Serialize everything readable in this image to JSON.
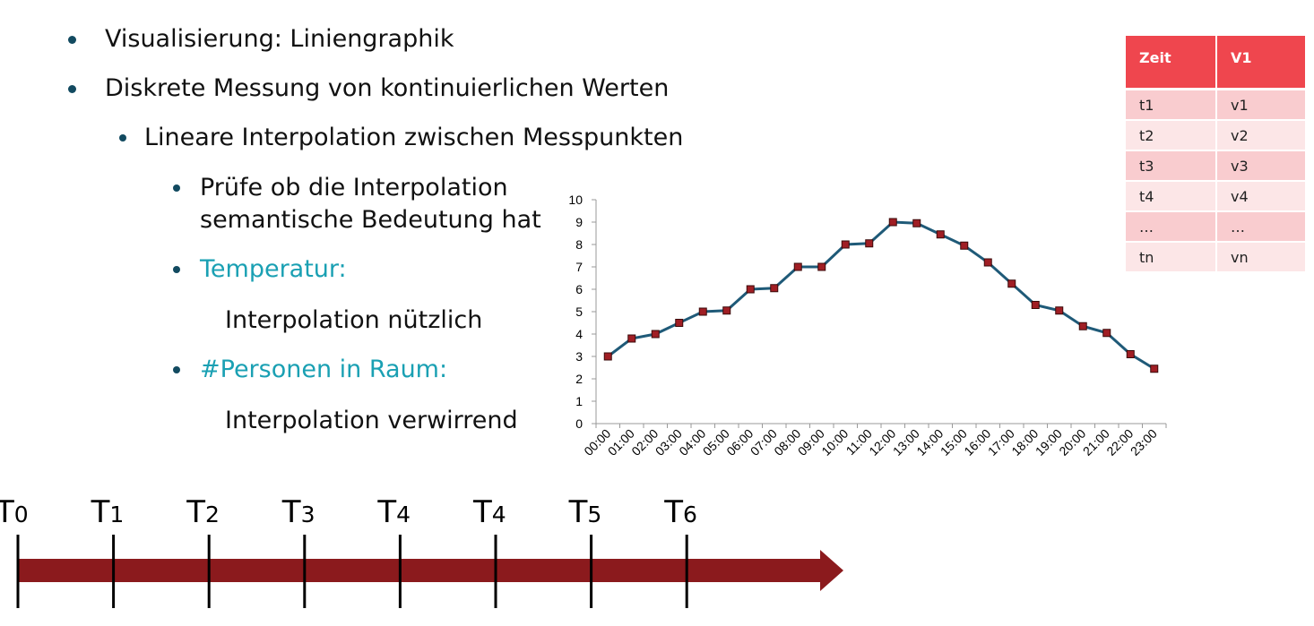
{
  "bullets": {
    "b1": "Visualisierung: Liniengraphik",
    "b2": "Diskrete Messung von kontinuierlichen Werten",
    "b3": "Lineare Interpolation zwischen Messpunkten",
    "b4_line1": "Prüfe ob die Interpolation",
    "b4_line2": "semantische Bedeutung hat",
    "b5": "Temperatur:",
    "b5_sub": "Interpolation nützlich",
    "b6": "#Personen in Raum:",
    "b6_sub": "Interpolation verwirrend"
  },
  "colors": {
    "accent": "#1aa0b3",
    "bullet": "#124a60",
    "line": "#1f5a78",
    "marker": "#a01e24",
    "table_header": "#ef464e",
    "table_row_odd": "#f9cccf",
    "table_row_even": "#fce6e7",
    "arrow": "#8b1a1d"
  },
  "table": {
    "headers": [
      "Zeit",
      "V1"
    ],
    "rows": [
      [
        "t1",
        "v1"
      ],
      [
        "t2",
        "v2"
      ],
      [
        "t3",
        "v3"
      ],
      [
        "t4",
        "v4"
      ],
      [
        "…",
        "…"
      ],
      [
        "tn",
        "vn"
      ]
    ]
  },
  "chart_data": {
    "type": "line",
    "title": "",
    "xlabel": "",
    "ylabel": "",
    "ylim": [
      0,
      10
    ],
    "yticks": [
      0,
      1,
      2,
      3,
      4,
      5,
      6,
      7,
      8,
      9,
      10
    ],
    "grid": false,
    "legend": "none",
    "categories": [
      "00:00",
      "01:00",
      "02:00",
      "03:00",
      "04:00",
      "05:00",
      "06:00",
      "07:00",
      "08:00",
      "09:00",
      "10:00",
      "11:00",
      "12:00",
      "13:00",
      "14:00",
      "15:00",
      "16:00",
      "17:00",
      "18:00",
      "19:00",
      "20:00",
      "21:00",
      "22:00",
      "23:00"
    ],
    "series": [
      {
        "values": [
          3.0,
          3.8,
          4.0,
          4.5,
          5.0,
          5.05,
          6.0,
          6.05,
          7.0,
          7.0,
          8.0,
          8.05,
          9.0,
          8.95,
          8.45,
          7.95,
          7.2,
          6.25,
          5.3,
          5.05,
          4.35,
          4.05,
          3.1,
          2.45
        ]
      }
    ]
  },
  "timeline": {
    "ticks": [
      {
        "main": "T",
        "sub": "0"
      },
      {
        "main": "T",
        "sub": "1"
      },
      {
        "main": "T",
        "sub": "2"
      },
      {
        "main": "T",
        "sub": "3"
      },
      {
        "main": "T",
        "sub": "4"
      },
      {
        "main": "T",
        "sub": "4"
      },
      {
        "main": "T",
        "sub": "5"
      },
      {
        "main": "T",
        "sub": "6"
      }
    ]
  }
}
